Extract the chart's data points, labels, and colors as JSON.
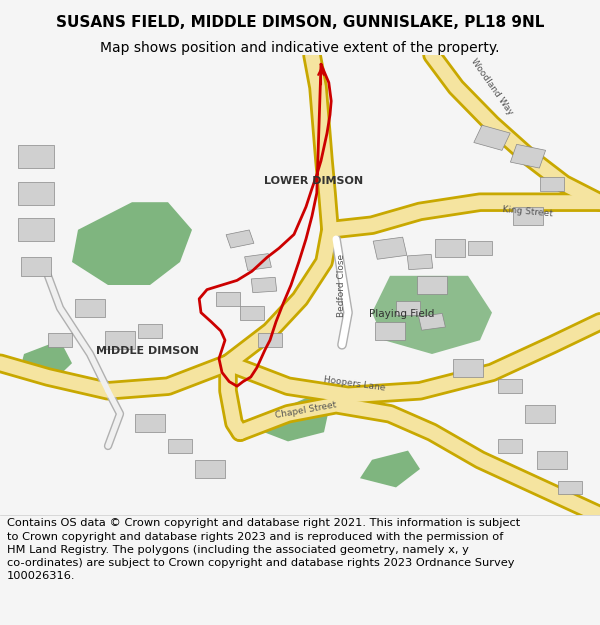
{
  "title_line1": "SUSANS FIELD, MIDDLE DIMSON, GUNNISLAKE, PL18 9NL",
  "title_line2": "Map shows position and indicative extent of the property.",
  "title_fontsize": 11,
  "subtitle_fontsize": 10,
  "footer_fontsize": 8.2,
  "bg_color": "#f5f5f5",
  "map_bg": "#ffffff",
  "road_major_color": "#f5e4a0",
  "road_border_color": "#c8a800",
  "road_minor_color": "#ffffff",
  "road_minor_border": "#b0b0b0",
  "green_color": "#6aaa6a",
  "red_outline_color": "#cc0000",
  "building_color": "#d0d0d0",
  "building_edge": "#888888",
  "label_lower_dimson": "LOWER DIMSON",
  "label_middle_dimson": "MIDDLE DIMSON",
  "label_playing_field": "Playing Field",
  "label_bedford_close": "Bedford Close",
  "label_hoopers_lane": "Hoopers Lane",
  "label_chapel_street": "Chapel Street",
  "label_woodland_way": "Woodland Way",
  "label_king_street": "King Street",
  "footer_lines": [
    "Contains OS data © Crown copyright and database right 2021. This information is subject",
    "to Crown copyright and database rights 2023 and is reproduced with the permission of",
    "HM Land Registry. The polygons (including the associated geometry, namely x, y",
    "co-ordinates) are subject to Crown copyright and database rights 2023 Ordnance Survey",
    "100026316."
  ]
}
